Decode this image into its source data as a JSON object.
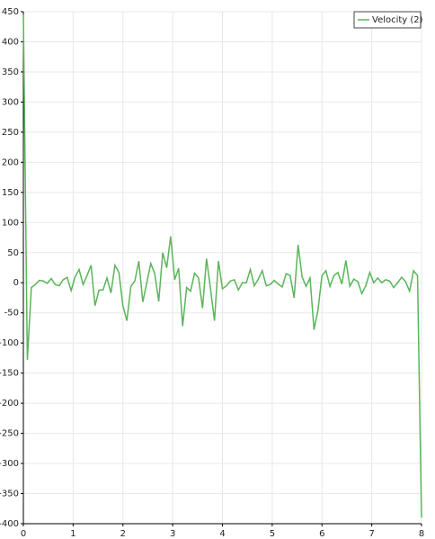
{
  "chart_data": {
    "type": "line",
    "x": [
      0,
      0.08,
      0.16,
      0.24,
      0.32,
      0.4,
      0.48,
      0.56,
      0.64,
      0.72,
      0.8,
      0.88,
      0.96,
      1.04,
      1.12,
      1.2,
      1.28,
      1.36,
      1.44,
      1.52,
      1.6,
      1.68,
      1.76,
      1.84,
      1.92,
      2,
      2.08,
      2.16,
      2.24,
      2.32,
      2.4,
      2.48,
      2.56,
      2.64,
      2.72,
      2.8,
      2.88,
      2.96,
      3.04,
      3.12,
      3.2,
      3.28,
      3.36,
      3.44,
      3.52,
      3.6,
      3.68,
      3.76,
      3.84,
      3.92,
      4,
      4.08,
      4.16,
      4.24,
      4.32,
      4.4,
      4.48,
      4.56,
      4.64,
      4.72,
      4.8,
      4.88,
      4.96,
      5.04,
      5.12,
      5.2,
      5.28,
      5.36,
      5.44,
      5.52,
      5.6,
      5.68,
      5.76,
      5.84,
      5.92,
      6,
      6.08,
      6.16,
      6.24,
      6.32,
      6.4,
      6.48,
      6.56,
      6.64,
      6.72,
      6.8,
      6.88,
      6.96,
      7.04,
      7.12,
      7.2,
      7.28,
      7.36,
      7.44,
      7.52,
      7.6,
      7.68,
      7.76,
      7.84,
      7.92,
      8
    ],
    "series": [
      {
        "name": "Velocity (2)",
        "color": "#5ab55a",
        "values": [
          445,
          -128,
          -8,
          -3,
          4,
          3,
          -1,
          7,
          -3,
          -5,
          5,
          9,
          -13,
          10,
          22,
          -3,
          12,
          29,
          -38,
          -12,
          -12,
          8,
          -17,
          29,
          17,
          -38,
          -63,
          -6,
          3,
          36,
          -32,
          0,
          32,
          15,
          -31,
          50,
          25,
          77,
          5,
          24,
          -72,
          -8,
          -14,
          16,
          8,
          -42,
          40,
          -10,
          -63,
          36,
          -10,
          -5,
          3,
          5,
          -12,
          0,
          0,
          22,
          -5,
          6,
          20,
          -5,
          -3,
          4,
          -2,
          -7,
          15,
          12,
          -25,
          63,
          10,
          -6,
          8,
          -78,
          -45,
          12,
          20,
          -6,
          12,
          17,
          -2,
          37,
          -6,
          6,
          2,
          -18,
          -5,
          17,
          0,
          8,
          0,
          5,
          3,
          -8,
          0,
          9,
          2,
          -14,
          20,
          12,
          -390
        ]
      }
    ],
    "xlim": [
      0,
      8
    ],
    "xticks": [
      0,
      1,
      2,
      3,
      4,
      5,
      6,
      7,
      8
    ],
    "ylim": [
      -400,
      450
    ],
    "yticks": [
      -400,
      -350,
      -300,
      -250,
      -200,
      -150,
      -100,
      -50,
      0,
      50,
      100,
      150,
      200,
      250,
      300,
      350,
      400,
      450
    ],
    "grid": true,
    "legend": "top-right"
  }
}
